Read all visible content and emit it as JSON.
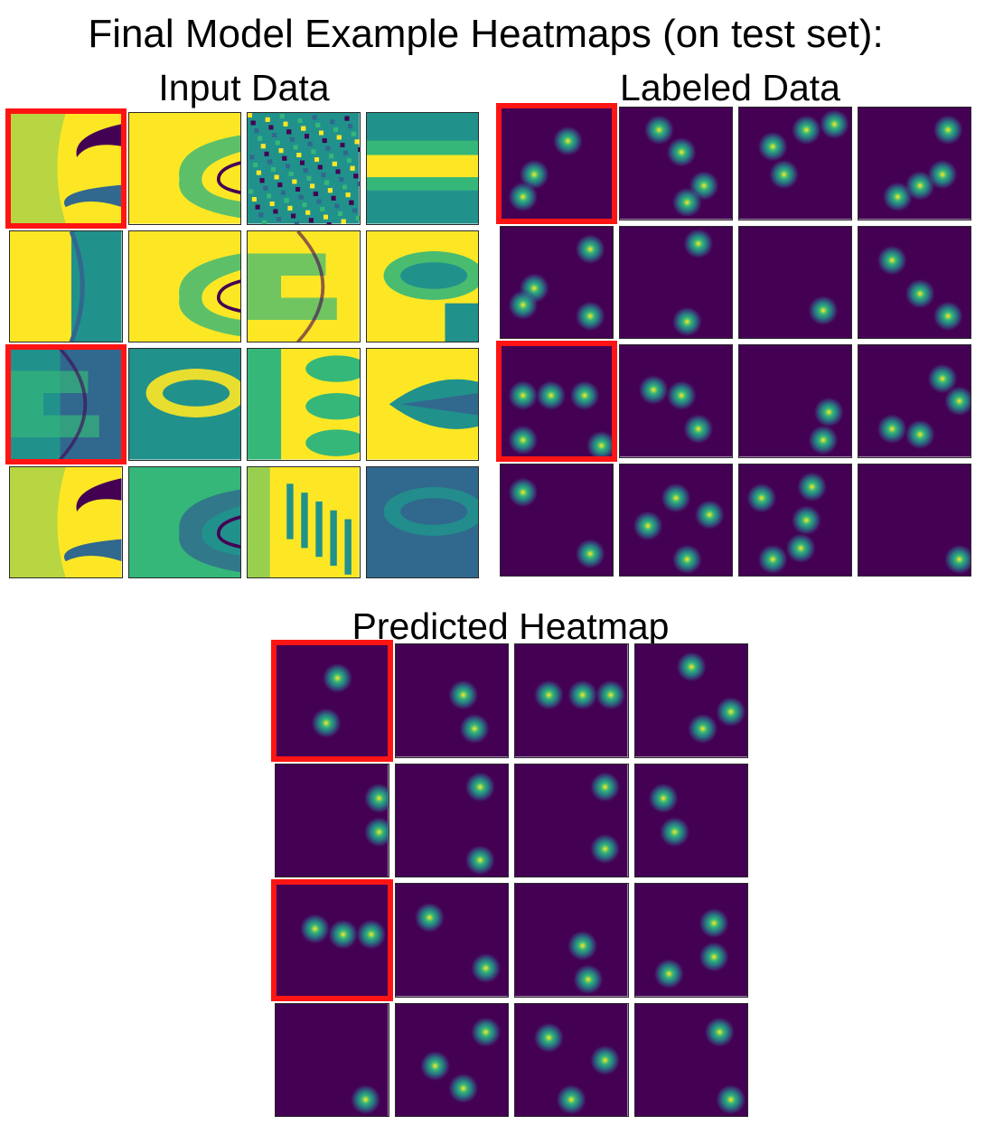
{
  "title": "Final Model Example Heatmaps (on test set):",
  "panels": {
    "input": {
      "label": "Input Data",
      "tiles": [
        {
          "style": "fan"
        },
        {
          "style": "wedge"
        },
        {
          "style": "noise"
        },
        {
          "style": "band"
        },
        {
          "style": "wedge-left"
        },
        {
          "style": "wedge"
        },
        {
          "style": "steps"
        },
        {
          "style": "oval"
        },
        {
          "style": "steps-dark"
        },
        {
          "style": "oval-dark"
        },
        {
          "style": "lobes"
        },
        {
          "style": "feather"
        },
        {
          "style": "fan"
        },
        {
          "style": "wedge-dark"
        },
        {
          "style": "comb"
        },
        {
          "style": "dark-oval"
        }
      ],
      "highlighted": [
        0,
        8
      ]
    },
    "labeled": {
      "label": "Labeled Data",
      "tiles": [
        {
          "blobs": [
            [
              0.6,
              0.3
            ],
            [
              0.3,
              0.6
            ],
            [
              0.2,
              0.8
            ]
          ]
        },
        {
          "blobs": [
            [
              0.55,
              0.4
            ],
            [
              0.75,
              0.7
            ],
            [
              0.35,
              0.2
            ],
            [
              0.6,
              0.85
            ]
          ]
        },
        {
          "blobs": [
            [
              0.3,
              0.35
            ],
            [
              0.6,
              0.2
            ],
            [
              0.85,
              0.15
            ],
            [
              0.4,
              0.6
            ]
          ]
        },
        {
          "blobs": [
            [
              0.8,
              0.2
            ],
            [
              0.35,
              0.8
            ],
            [
              0.55,
              0.7
            ],
            [
              0.75,
              0.6
            ]
          ]
        },
        {
          "blobs": [
            [
              0.8,
              0.2
            ],
            [
              0.8,
              0.8
            ],
            [
              0.3,
              0.55
            ],
            [
              0.2,
              0.7
            ]
          ]
        },
        {
          "blobs": [
            [
              0.7,
              0.15
            ],
            [
              0.6,
              0.85
            ]
          ]
        },
        {
          "blobs": [
            [
              0.75,
              0.75
            ]
          ]
        },
        {
          "blobs": [
            [
              0.3,
              0.3
            ],
            [
              0.55,
              0.6
            ],
            [
              0.8,
              0.8
            ]
          ]
        },
        {
          "blobs": [
            [
              0.2,
              0.45
            ],
            [
              0.45,
              0.45
            ],
            [
              0.75,
              0.45
            ],
            [
              0.9,
              0.9
            ],
            [
              0.2,
              0.85
            ]
          ]
        },
        {
          "blobs": [
            [
              0.3,
              0.4
            ],
            [
              0.55,
              0.45
            ],
            [
              0.7,
              0.75
            ]
          ]
        },
        {
          "blobs": [
            [
              0.75,
              0.85
            ],
            [
              0.8,
              0.6
            ]
          ]
        },
        {
          "blobs": [
            [
              0.75,
              0.3
            ],
            [
              0.3,
              0.75
            ],
            [
              0.55,
              0.8
            ],
            [
              0.9,
              0.5
            ]
          ]
        },
        {
          "blobs": [
            [
              0.8,
              0.8
            ],
            [
              0.2,
              0.25
            ]
          ]
        },
        {
          "blobs": [
            [
              0.5,
              0.3
            ],
            [
              0.25,
              0.55
            ],
            [
              0.6,
              0.85
            ],
            [
              0.8,
              0.45
            ]
          ]
        },
        {
          "blobs": [
            [
              0.2,
              0.3
            ],
            [
              0.6,
              0.5
            ],
            [
              0.3,
              0.85
            ],
            [
              0.55,
              0.75
            ],
            [
              0.65,
              0.2
            ]
          ]
        },
        {
          "blobs": [
            [
              0.9,
              0.85
            ]
          ]
        }
      ],
      "highlighted": [
        0,
        8
      ]
    },
    "predicted": {
      "label": "Predicted Heatmap",
      "tiles": [
        {
          "blobs": [
            [
              0.55,
              0.3
            ],
            [
              0.45,
              0.7
            ]
          ]
        },
        {
          "blobs": [
            [
              0.6,
              0.45
            ],
            [
              0.7,
              0.75
            ]
          ]
        },
        {
          "blobs": [
            [
              0.3,
              0.45
            ],
            [
              0.6,
              0.45
            ],
            [
              0.85,
              0.45
            ]
          ]
        },
        {
          "blobs": [
            [
              0.5,
              0.2
            ],
            [
              0.6,
              0.75
            ],
            [
              0.85,
              0.6
            ]
          ]
        },
        {
          "blobs": [
            [
              0.92,
              0.3
            ],
            [
              0.92,
              0.6
            ]
          ]
        },
        {
          "blobs": [
            [
              0.75,
              0.2
            ],
            [
              0.75,
              0.85
            ]
          ]
        },
        {
          "blobs": [
            [
              0.8,
              0.2
            ],
            [
              0.8,
              0.75
            ]
          ]
        },
        {
          "blobs": [
            [
              0.25,
              0.3
            ],
            [
              0.35,
              0.6
            ]
          ]
        },
        {
          "blobs": [
            [
              0.35,
              0.4
            ],
            [
              0.6,
              0.45
            ],
            [
              0.85,
              0.45
            ]
          ]
        },
        {
          "blobs": [
            [
              0.3,
              0.3
            ],
            [
              0.8,
              0.75
            ]
          ]
        },
        {
          "blobs": [
            [
              0.6,
              0.55
            ],
            [
              0.65,
              0.85
            ]
          ]
        },
        {
          "blobs": [
            [
              0.7,
              0.35
            ],
            [
              0.7,
              0.65
            ],
            [
              0.3,
              0.8
            ]
          ]
        },
        {
          "blobs": [
            [
              0.8,
              0.85
            ]
          ]
        },
        {
          "blobs": [
            [
              0.35,
              0.55
            ],
            [
              0.6,
              0.75
            ],
            [
              0.8,
              0.25
            ]
          ]
        },
        {
          "blobs": [
            [
              0.3,
              0.3
            ],
            [
              0.5,
              0.85
            ],
            [
              0.8,
              0.5
            ]
          ]
        },
        {
          "blobs": [
            [
              0.85,
              0.85
            ],
            [
              0.75,
              0.25
            ]
          ]
        }
      ],
      "highlighted": [
        0,
        8
      ]
    }
  },
  "colors": {
    "viridis_dark": "#440154",
    "viridis_blue": "#31688e",
    "viridis_teal": "#21918c",
    "viridis_green": "#35b779",
    "viridis_yellow": "#fde725",
    "highlight_red": "#ff1414"
  }
}
